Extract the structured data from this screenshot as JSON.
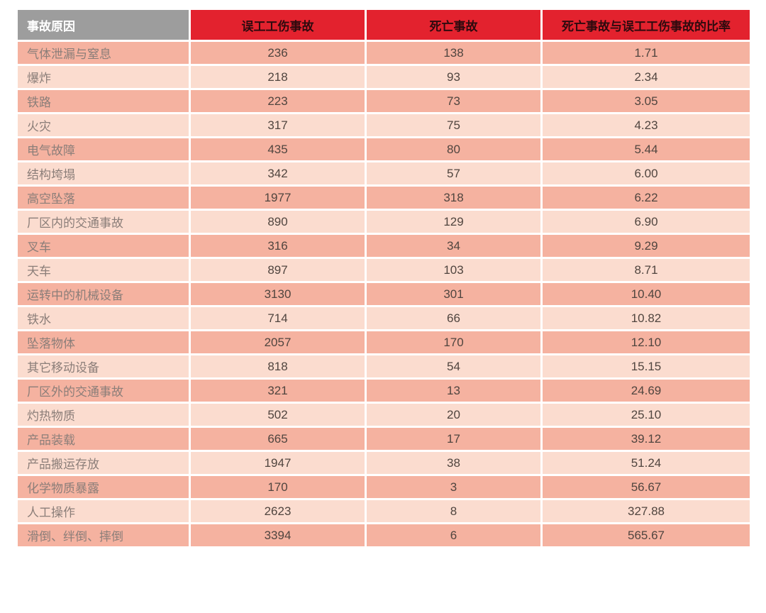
{
  "colors": {
    "header_gray": "#9d9d9d",
    "header_red": "#e3222e",
    "header_text_on_gray": "#ffffff",
    "header_text_on_red": "#2e0a0e",
    "row_dark": "#f5b2a0",
    "row_light": "#fbdccf",
    "label_text": "#8b7e79",
    "number_text": "#50453f",
    "page_background": "#ffffff"
  },
  "chart_data": {
    "type": "table",
    "title": "",
    "columns": [
      "事故原因",
      "误工工伤事故",
      "死亡事故",
      "死亡事故与误工工伤事故的比率"
    ],
    "rows": [
      [
        "气体泄漏与窒息",
        "236",
        "138",
        "1.71"
      ],
      [
        "爆炸",
        "218",
        "93",
        "2.34"
      ],
      [
        "铁路",
        "223",
        "73",
        "3.05"
      ],
      [
        "火灾",
        "317",
        "75",
        "4.23"
      ],
      [
        "电气故障",
        "435",
        "80",
        "5.44"
      ],
      [
        "结构垮塌",
        "342",
        "57",
        "6.00"
      ],
      [
        "高空坠落",
        "1977",
        "318",
        "6.22"
      ],
      [
        "厂区内的交通事故",
        "890",
        "129",
        "6.90"
      ],
      [
        "叉车",
        "316",
        "34",
        "9.29"
      ],
      [
        "天车",
        "897",
        "103",
        "8.71"
      ],
      [
        "运转中的机械设备",
        "3130",
        "301",
        "10.40"
      ],
      [
        "铁水",
        "714",
        "66",
        "10.82"
      ],
      [
        "坠落物体",
        "2057",
        "170",
        "12.10"
      ],
      [
        "其它移动设备",
        "818",
        "54",
        "15.15"
      ],
      [
        "厂区外的交通事故",
        "321",
        "13",
        "24.69"
      ],
      [
        "灼热物质",
        "502",
        "20",
        "25.10"
      ],
      [
        "产品装载",
        "665",
        "17",
        "39.12"
      ],
      [
        "产品搬运存放",
        "1947",
        "38",
        "51.24"
      ],
      [
        "化学物质暴露",
        "170",
        "3",
        "56.67"
      ],
      [
        "人工操作",
        "2623",
        "8",
        "327.88"
      ],
      [
        "滑倒、绊倒、摔倒",
        "3394",
        "6",
        "565.67"
      ]
    ],
    "layout": {
      "striped_rows": true,
      "stripe_order": "dark-first",
      "column_alignment": [
        "left",
        "center",
        "center",
        "center"
      ]
    }
  }
}
